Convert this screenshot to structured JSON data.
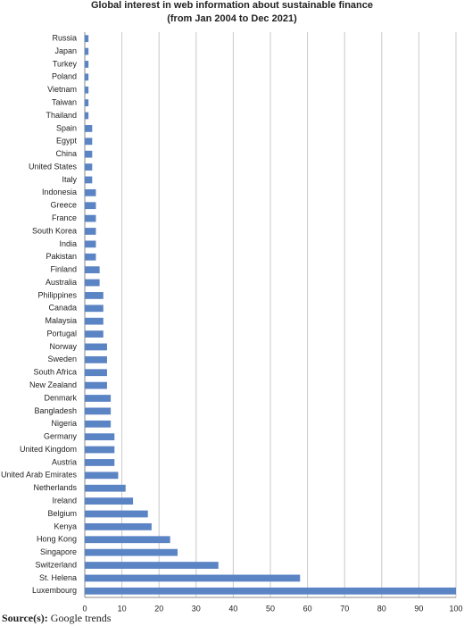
{
  "chart_data": {
    "type": "hbar",
    "title": "Global interest in web information about sustainable finance",
    "subtitle": "(from Jan 2004 to Dec 2021)",
    "categories": [
      "Russia",
      "Japan",
      "Turkey",
      "Poland",
      "Vietnam",
      "Taiwan",
      "Thailand",
      "Spain",
      "Egypt",
      "China",
      "United States",
      "Italy",
      "Indonesia",
      "Greece",
      "France",
      "South Korea",
      "India",
      "Pakistan",
      "Finland",
      "Australia",
      "Philippines",
      "Canada",
      "Malaysia",
      "Portugal",
      "Norway",
      "Sweden",
      "South Africa",
      "New Zealand",
      "Denmark",
      "Bangladesh",
      "Nigeria",
      "Germany",
      "United Kingdom",
      "Austria",
      "United Arab Emirates",
      "Netherlands",
      "Ireland",
      "Belgium",
      "Kenya",
      "Hong Kong",
      "Singapore",
      "Switzerland",
      "St. Helena",
      "Luxembourg"
    ],
    "values": [
      1,
      1,
      1,
      1,
      1,
      1,
      1,
      2,
      2,
      2,
      2,
      2,
      3,
      3,
      3,
      3,
      3,
      3,
      4,
      4,
      5,
      5,
      5,
      5,
      6,
      6,
      6,
      6,
      7,
      7,
      7,
      8,
      8,
      8,
      9,
      11,
      13,
      17,
      18,
      23,
      25,
      36,
      58,
      100
    ],
    "color": "#5b84c4",
    "xlim": [
      0,
      100
    ],
    "xticks": [
      0,
      10,
      20,
      30,
      40,
      50,
      60,
      70,
      80,
      90,
      100
    ],
    "grid": true,
    "source_label": "Source(s):",
    "source": "Google trends"
  }
}
